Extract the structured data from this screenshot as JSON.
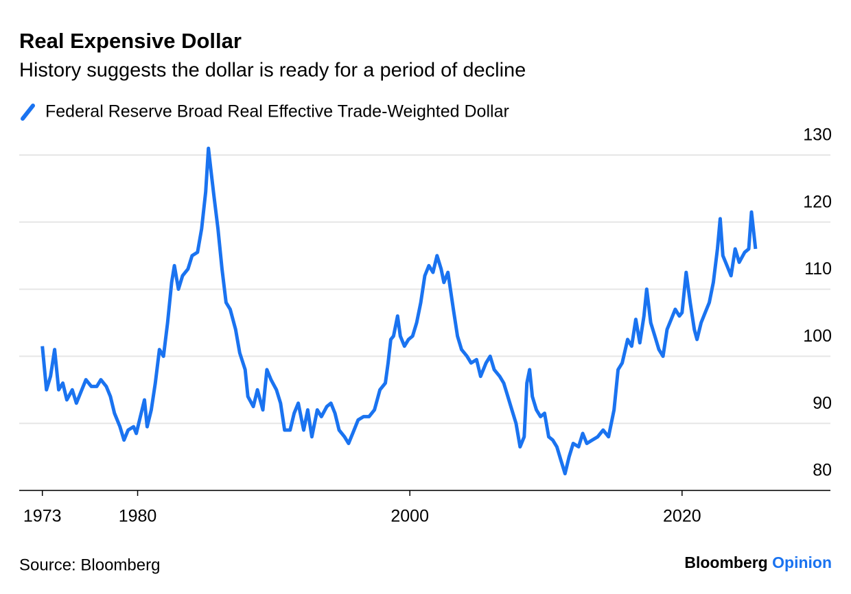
{
  "chart_data": {
    "type": "line",
    "title": "Real Expensive Dollar",
    "subtitle": "History suggests the dollar is ready for a period of decline",
    "source": "Source: Bloomberg",
    "brand": [
      "Bloomberg",
      "Opinion"
    ],
    "xlim": [
      1971.3,
      2030.9
    ],
    "xticks": [
      1973,
      1980,
      2000,
      2020
    ],
    "ylim": [
      80,
      132.5
    ],
    "yticks": [
      80,
      90,
      100,
      110,
      120,
      130
    ],
    "grid": true,
    "series": [
      {
        "name": "Federal Reserve Broad Real Effective Trade-Weighted Dollar",
        "color": "#1a73f0",
        "x": [
          1973.0,
          1973.3,
          1973.6,
          1973.9,
          1974.2,
          1974.5,
          1974.8,
          1975.2,
          1975.5,
          1975.8,
          1976.2,
          1976.6,
          1977.0,
          1977.3,
          1977.7,
          1978.0,
          1978.3,
          1978.7,
          1979.0,
          1979.3,
          1979.7,
          1979.9,
          1980.2,
          1980.5,
          1980.7,
          1981.0,
          1981.3,
          1981.6,
          1981.9,
          1982.2,
          1982.5,
          1982.7,
          1983.0,
          1983.3,
          1983.7,
          1984.0,
          1984.4,
          1984.7,
          1985.0,
          1985.2,
          1985.4,
          1985.6,
          1985.9,
          1986.2,
          1986.5,
          1986.8,
          1987.2,
          1987.5,
          1987.9,
          1988.1,
          1988.5,
          1988.8,
          1989.2,
          1989.5,
          1989.8,
          1990.2,
          1990.5,
          1990.8,
          1991.2,
          1991.5,
          1991.8,
          1992.2,
          1992.5,
          1992.8,
          1993.2,
          1993.5,
          1993.9,
          1994.2,
          1994.5,
          1994.8,
          1995.2,
          1995.5,
          1995.8,
          1996.2,
          1996.6,
          1997.0,
          1997.4,
          1997.8,
          1998.2,
          1998.4,
          1998.6,
          1998.8,
          1999.1,
          1999.3,
          1999.6,
          1999.9,
          2000.2,
          2000.5,
          2000.8,
          2001.1,
          2001.4,
          2001.7,
          2002.0,
          2002.3,
          2002.5,
          2002.8,
          2003.2,
          2003.5,
          2003.8,
          2004.2,
          2004.5,
          2004.9,
          2005.2,
          2005.6,
          2005.9,
          2006.2,
          2006.6,
          2006.9,
          2007.2,
          2007.5,
          2007.8,
          2008.1,
          2008.4,
          2008.6,
          2008.8,
          2009.0,
          2009.3,
          2009.6,
          2009.9,
          2010.2,
          2010.5,
          2010.8,
          2011.1,
          2011.4,
          2011.7,
          2012.0,
          2012.4,
          2012.7,
          2013.0,
          2013.4,
          2013.8,
          2014.2,
          2014.6,
          2015.0,
          2015.3,
          2015.6,
          2016.0,
          2016.3,
          2016.6,
          2016.9,
          2017.2,
          2017.4,
          2017.7,
          2018.0,
          2018.3,
          2018.6,
          2018.9,
          2019.2,
          2019.5,
          2019.8,
          2020.0,
          2020.3,
          2020.6,
          2020.9,
          2021.1,
          2021.4,
          2021.7,
          2022.0,
          2022.3,
          2022.6,
          2022.8,
          2023.0,
          2023.3,
          2023.6,
          2023.9,
          2024.2,
          2024.6,
          2024.9,
          2025.1,
          2025.4
        ],
        "values": [
          101.5,
          95,
          97,
          101,
          95,
          96,
          93.5,
          95,
          93,
          94.5,
          96.5,
          95.5,
          95.5,
          96.5,
          95.5,
          94,
          91.5,
          89.5,
          87.5,
          89,
          89.5,
          88.5,
          91,
          93.5,
          89.5,
          92,
          96,
          101,
          100,
          105,
          111,
          113.5,
          110,
          112,
          113,
          115,
          115.5,
          119,
          124.5,
          131,
          127.5,
          124,
          119,
          113,
          108,
          107,
          104,
          100.5,
          98,
          94,
          92.5,
          95,
          92,
          98,
          96.5,
          95,
          93,
          89,
          89,
          91.5,
          93,
          89,
          92,
          88,
          92,
          91,
          92.5,
          93,
          91.5,
          89,
          88,
          87,
          88.5,
          90.5,
          91,
          91,
          92,
          95,
          96,
          99,
          102.5,
          103,
          106,
          103,
          101.5,
          102.5,
          103,
          105,
          108,
          112,
          113.5,
          112.5,
          115,
          113,
          111,
          112.5,
          107,
          103,
          101,
          100,
          99,
          99.5,
          97,
          99,
          100,
          98,
          97,
          96,
          94,
          92,
          90,
          86.5,
          88,
          96,
          98,
          94,
          92,
          91,
          91.5,
          88,
          87.5,
          86.5,
          84.5,
          82.5,
          85,
          87,
          86.5,
          88.5,
          87,
          87.5,
          88,
          89,
          88,
          92,
          98,
          99,
          102.5,
          101.5,
          105.5,
          102,
          106,
          110,
          105,
          103,
          101,
          100,
          104,
          105.5,
          107,
          106,
          106.5,
          112.5,
          108,
          104,
          102.5,
          105,
          106.5,
          108,
          111,
          116,
          120.5,
          115,
          113.5,
          112,
          116,
          114,
          115.5,
          116,
          121.5,
          116
        ]
      }
    ]
  }
}
